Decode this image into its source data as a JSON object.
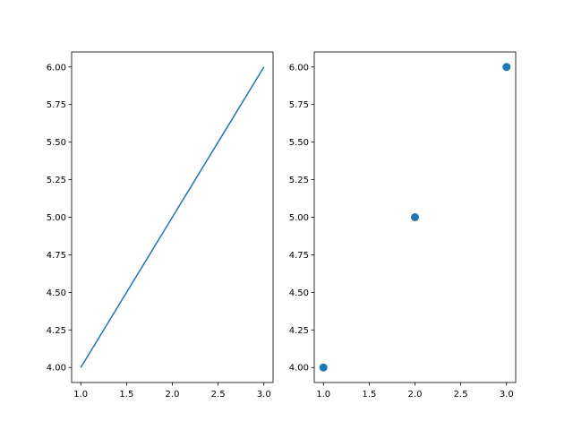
{
  "chart_data": [
    {
      "type": "line",
      "title": "",
      "xlabel": "",
      "ylabel": "",
      "x": [
        1,
        2,
        3
      ],
      "series": [
        {
          "values": [
            4,
            5,
            6
          ]
        }
      ],
      "xlim": [
        0.9,
        3.1
      ],
      "ylim": [
        3.9,
        6.1
      ],
      "xticks": [
        "1.0",
        "1.5",
        "2.0",
        "2.5",
        "3.0"
      ],
      "yticks": [
        "4.00",
        "4.25",
        "4.50",
        "4.75",
        "5.00",
        "5.25",
        "5.50",
        "5.75",
        "6.00"
      ],
      "grid": false,
      "color": "#1f77b4"
    },
    {
      "type": "scatter",
      "title": "",
      "xlabel": "",
      "ylabel": "",
      "x": [
        1,
        2,
        3
      ],
      "series": [
        {
          "values": [
            4,
            5,
            6
          ]
        }
      ],
      "xlim": [
        0.9,
        3.1
      ],
      "ylim": [
        3.9,
        6.1
      ],
      "xticks": [
        "1.0",
        "1.5",
        "2.0",
        "2.5",
        "3.0"
      ],
      "yticks": [
        "4.00",
        "4.25",
        "4.50",
        "4.75",
        "5.00",
        "5.25",
        "5.50",
        "5.75",
        "6.00"
      ],
      "grid": false,
      "color": "#1f77b4"
    }
  ]
}
